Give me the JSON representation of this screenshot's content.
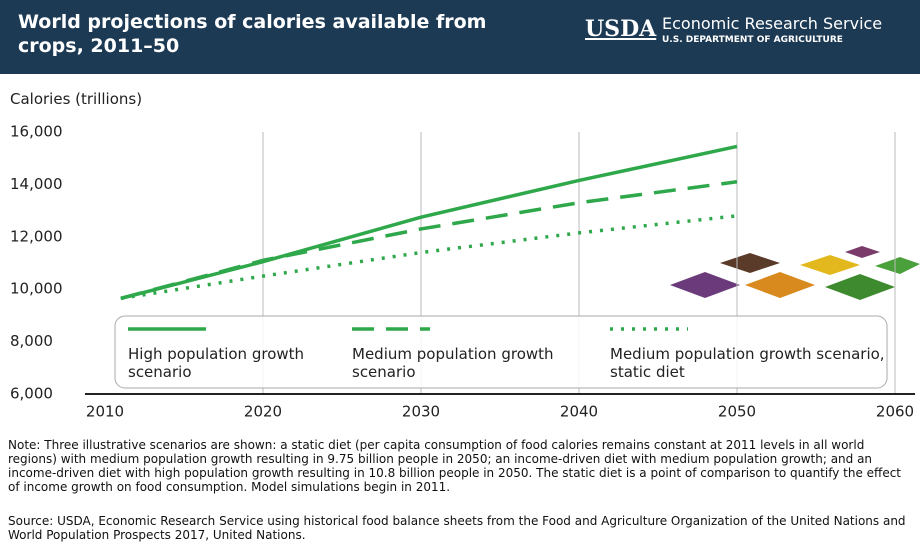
{
  "branding": {
    "logo": "USDA",
    "agency": "Economic Research Service",
    "department": "U.S. DEPARTMENT OF AGRICULTURE"
  },
  "chart_data": {
    "type": "line",
    "title": "World projections of calories available from crops, 2011–50",
    "y_label": "Calories (trillions)",
    "x": [
      2011,
      2020,
      2030,
      2040,
      2050
    ],
    "series": [
      {
        "name": "High population growth scenario",
        "color": "#2ea84a",
        "style": "solid",
        "values": [
          9650,
          11050,
          12750,
          14150,
          15450
        ]
      },
      {
        "name": "Medium population growth scenario",
        "color": "#2ea84a",
        "style": "dashed",
        "values": [
          9650,
          11100,
          12300,
          13300,
          14100
        ]
      },
      {
        "name": "Medium population growth scenario, static diet",
        "color": "#2ea84a",
        "style": "dotted",
        "values": [
          9650,
          10500,
          11400,
          12150,
          12800
        ]
      }
    ],
    "xlim": [
      2010,
      2060
    ],
    "xticks": [
      2010,
      2020,
      2030,
      2040,
      2050,
      2060
    ],
    "ylim": [
      6000,
      16000
    ],
    "yticks": [
      {
        "value": 6000,
        "label": "6,000"
      },
      {
        "value": 8000,
        "label": "8,000"
      },
      {
        "value": 10000,
        "label": "10,000"
      },
      {
        "value": 12000,
        "label": "12,000"
      },
      {
        "value": 14000,
        "label": "14,000"
      },
      {
        "value": 16000,
        "label": "16,000"
      }
    ],
    "grid": "x",
    "note": "Note: Three illustrative scenarios are shown: a static diet (per capita consumption of food calories remains constant at 2011 levels in all world regions) with medium population growth resulting in 9.75 billion people in 2050; an income-driven diet with medium population growth; and an income-driven diet with high population growth resulting in 10.8 billion people in 2050. The static diet is a point of comparison to quantify the effect of income growth on food consumption. Model simulations begin in 2011.",
    "source": "Source: USDA, Economic Research Service using historical food balance sheets from the Food and Agriculture Organization of the United Nations and World Population Prospects 2017, United Nations."
  }
}
